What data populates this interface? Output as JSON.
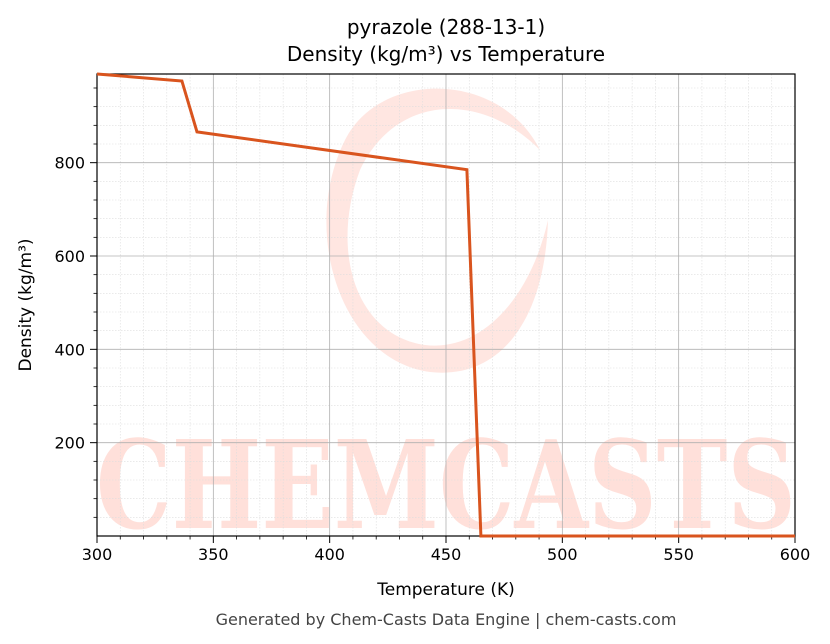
{
  "chart_data": {
    "type": "line",
    "title": "pyrazole (288-13-1)",
    "subtitle": "Density (kg/m³) vs Temperature",
    "xlabel": "Temperature (K)",
    "ylabel": "Density (kg/m³)",
    "xlim": [
      300,
      600
    ],
    "ylim": [
      0,
      990
    ],
    "x_ticks": [
      300,
      350,
      400,
      450,
      500,
      550,
      600
    ],
    "y_ticks": [
      200,
      400,
      600,
      800
    ],
    "grid": true,
    "legend": "none",
    "series": [
      {
        "color": "#d9541e",
        "x": [
          300,
          336.5,
          343,
          459,
          465,
          600
        ],
        "y": [
          990,
          975,
          866,
          785,
          0,
          0
        ]
      }
    ]
  },
  "watermark": {
    "text": "CHEMCASTS",
    "color": "#ffe0da"
  },
  "footer": "Generated by Chem-Casts Data Engine | chem-casts.com"
}
